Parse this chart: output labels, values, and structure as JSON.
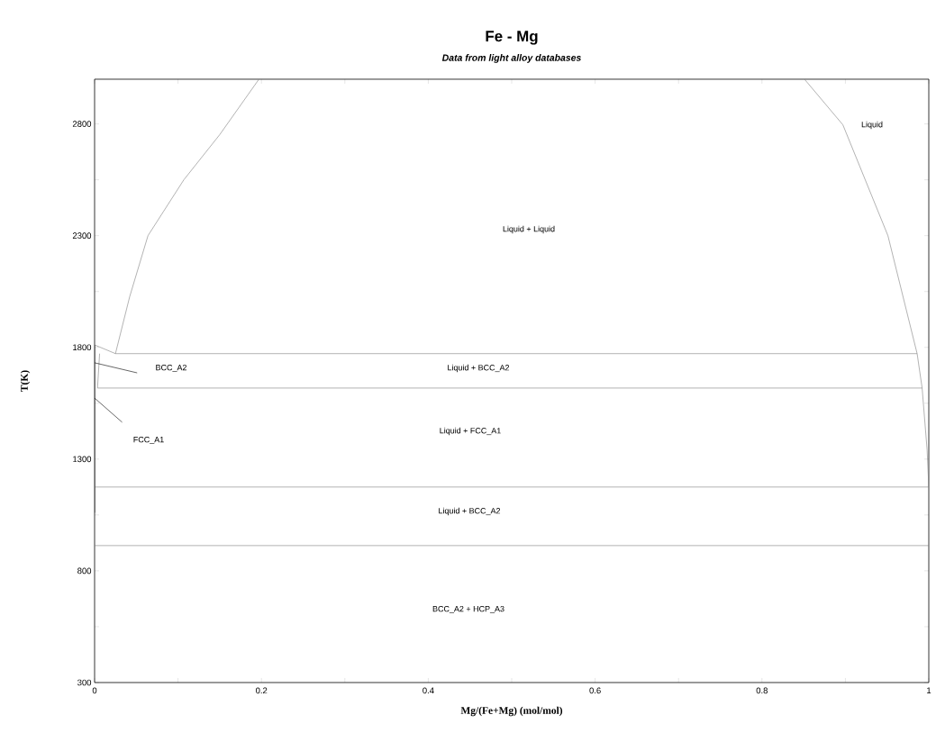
{
  "chart_data": {
    "type": "line",
    "title": "Fe - Mg",
    "subtitle": "Data from light alloy databases",
    "xlabel": "Mg/(Fe+Mg) (mol/mol)",
    "ylabel": "T(K)",
    "xlim": [
      0,
      1
    ],
    "ylim": [
      300,
      3000
    ],
    "xticks": [
      0,
      {
        "value": 0.1,
        "label": null
      },
      0.2,
      {
        "value": 0.3,
        "label": null
      },
      0.4,
      {
        "value": 0.5,
        "label": null
      },
      0.6,
      {
        "value": 0.7,
        "label": null
      },
      0.8,
      {
        "value": 0.9,
        "label": null
      },
      1
    ],
    "yticks": [
      300,
      {
        "value": 550,
        "label": null
      },
      800,
      {
        "value": 1050,
        "label": null
      },
      1300,
      {
        "value": 1550,
        "label": null
      },
      1800,
      {
        "value": 2050,
        "label": null
      },
      2300,
      {
        "value": 2550,
        "label": null
      },
      2800
    ],
    "grid": false,
    "marker": "none",
    "line_style": "solid",
    "series": [
      {
        "color": "#808080",
        "x": [
          0.025,
          0.042,
          0.064,
          0.107,
          0.15,
          0.197
        ],
        "values": [
          1772,
          2026,
          2300,
          2550,
          2752,
          3000
        ]
      },
      {
        "color": "#808080",
        "x": [
          0.851,
          0.897,
          0.951,
          0.986,
          0.992,
          0.998,
          1
        ],
        "values": [
          3000,
          2796,
          2300,
          1772,
          1618,
          1340,
          1175
        ]
      },
      {
        "color": "#808080",
        "x": [
          0,
          0.025,
          0.986
        ],
        "values": [
          1811,
          1772,
          1772
        ]
      },
      {
        "color": "#808080",
        "x": [
          0.0035,
          0.992
        ],
        "values": [
          1618,
          1618
        ]
      },
      {
        "color": "#808080",
        "x": [
          0,
          1
        ],
        "values": [
          1175,
          1175
        ]
      },
      {
        "color": "#808080",
        "x": [
          0,
          1
        ],
        "values": [
          913,
          913
        ]
      },
      {
        "color": "#808080",
        "x": [
          0.006,
          0.0035
        ],
        "values": [
          1772,
          1618
        ]
      },
      {
        "color": "#000000",
        "x": [
          0,
          0
        ],
        "values": [
          1811,
          1060
        ]
      },
      {
        "color": "#000000",
        "x": [
          0,
          0.051
        ],
        "values": [
          1731,
          1686
        ]
      },
      {
        "color": "#000000",
        "x": [
          0,
          0.033
        ],
        "values": [
          1573,
          1465
        ]
      }
    ],
    "annotations": [
      "Liquid",
      "Liquid + Liquid",
      "Liquid + BCC_A2",
      "Liquid + FCC_A1",
      "Liquid + BCC_A2",
      "BCC_A2 + HCP_A3",
      "BCC_A2",
      "FCC_A1"
    ]
  }
}
